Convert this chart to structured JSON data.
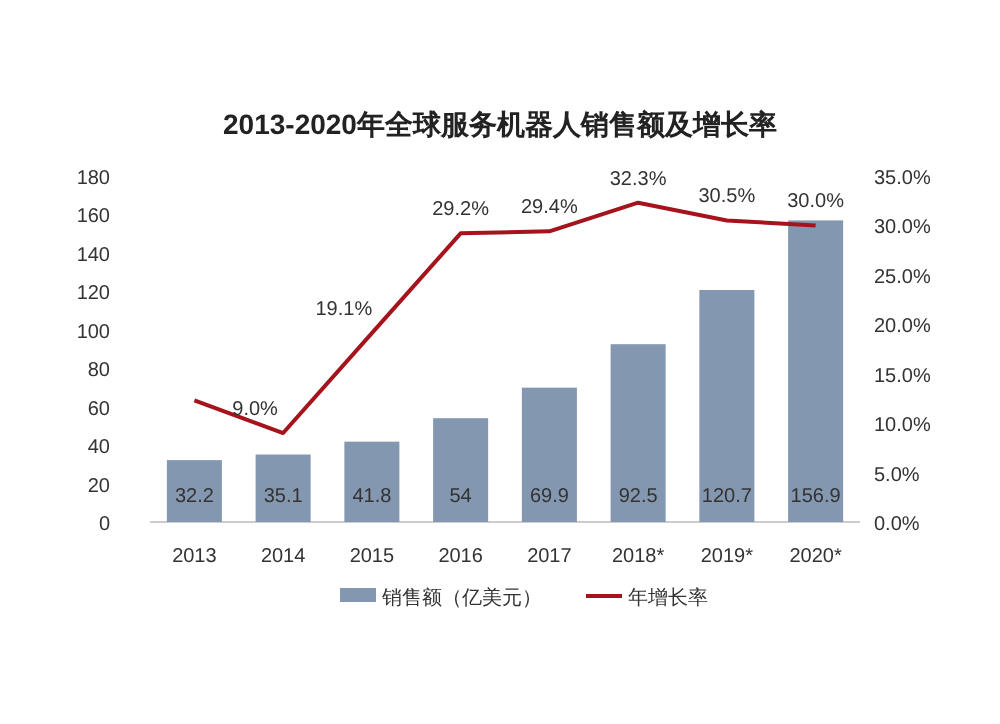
{
  "chart_data": {
    "type": "bar",
    "title": "2013-2020年全球服务机器人销售额及增长率",
    "categories": [
      "2013",
      "2014",
      "2015",
      "2016",
      "2017",
      "2018*",
      "2019*",
      "2020*"
    ],
    "series": [
      {
        "name": "销售额（亿美元）",
        "color": "#8497b0",
        "values": [
          32.2,
          35.1,
          41.8,
          54,
          69.9,
          92.5,
          120.7,
          156.9
        ],
        "value_labels": [
          "32.2",
          "35.1",
          "41.8",
          "54",
          "69.9",
          "92.5",
          "120.7",
          "156.9"
        ]
      },
      {
        "name": "年增长率",
        "type": "line",
        "axis": "y2",
        "color": "#a5141c",
        "values": [
          12.3,
          9.0,
          19.1,
          29.2,
          29.4,
          32.3,
          30.5,
          30.0
        ],
        "value_labels": [
          null,
          "9.0%",
          "19.1%",
          "29.2%",
          "29.4%",
          "32.3%",
          "30.5%",
          "30.0%"
        ]
      }
    ],
    "ylim": [
      0,
      180
    ],
    "yticks": [
      0,
      20,
      40,
      60,
      80,
      100,
      120,
      140,
      160,
      180
    ],
    "y2lim": [
      0,
      35
    ],
    "y2ticks": [
      {
        "value": 0,
        "label": "0.0%"
      },
      {
        "value": 5,
        "label": "5.0%"
      },
      {
        "value": 10,
        "label": "10.0%"
      },
      {
        "value": 15,
        "label": "15.0%"
      },
      {
        "value": 20,
        "label": "20.0%"
      },
      {
        "value": 25,
        "label": "25.0%"
      },
      {
        "value": 30,
        "label": "30.0%"
      },
      {
        "value": 35,
        "label": "35.0%"
      }
    ],
    "legend": "bottom",
    "grid": false
  }
}
